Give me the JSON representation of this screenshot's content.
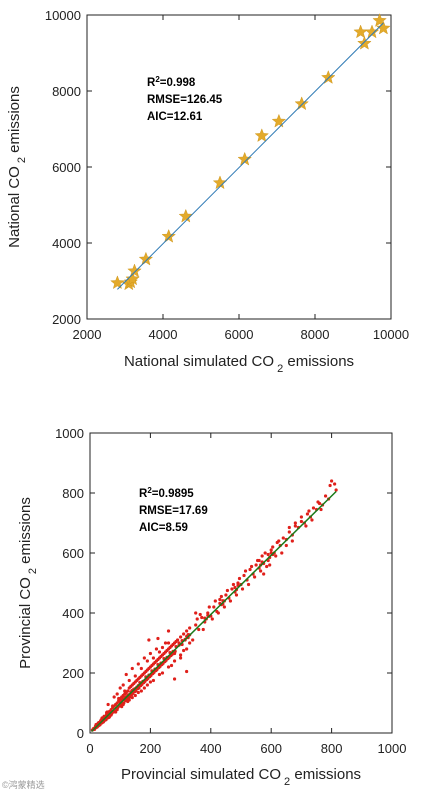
{
  "watermark": "©鸿蒙精选",
  "chart_data": [
    {
      "type": "scatter",
      "marker": "star",
      "xlabel": "National simulated CO 2 emissions",
      "ylabel": "National CO 2 emissions",
      "xlim": [
        2000,
        10000
      ],
      "ylim": [
        2000,
        10000
      ],
      "xticks": [
        2000,
        4000,
        6000,
        8000,
        10000
      ],
      "yticks": [
        2000,
        4000,
        6000,
        8000,
        10000
      ],
      "stats": [
        "R2=0.998",
        "RMSE=126.45",
        "AIC=12.61"
      ],
      "colors": {
        "points": "#e3aa2b",
        "fit_line": "#2e7ab5",
        "axes": "#222222"
      },
      "fit_line": {
        "x": [
          2800,
          9800
        ],
        "y": [
          2780,
          9790
        ]
      },
      "points": [
        [
          2800,
          2950
        ],
        [
          3100,
          2920
        ],
        [
          3150,
          2970
        ],
        [
          3200,
          3050
        ],
        [
          3250,
          3260
        ],
        [
          3550,
          3570
        ],
        [
          4150,
          4170
        ],
        [
          4600,
          4700
        ],
        [
          5500,
          5580
        ],
        [
          6150,
          6200
        ],
        [
          6600,
          6820
        ],
        [
          7050,
          7200
        ],
        [
          7650,
          7660
        ],
        [
          8350,
          8350
        ],
        [
          9200,
          9550
        ],
        [
          9300,
          9250
        ],
        [
          9500,
          9550
        ],
        [
          9700,
          9850
        ],
        [
          9800,
          9650
        ]
      ]
    },
    {
      "type": "scatter",
      "marker": "dot",
      "xlabel": "Provincial simulated CO 2 emissions",
      "ylabel": "Provincial CO 2 emissions",
      "xlim": [
        0,
        1000
      ],
      "ylim": [
        0,
        1000
      ],
      "xticks": [
        0,
        200,
        400,
        600,
        800,
        1000
      ],
      "yticks": [
        0,
        200,
        400,
        600,
        800,
        1000
      ],
      "stats": [
        "R2=0.9895",
        "RMSE=17.69",
        "AIC=8.59"
      ],
      "colors": {
        "points": "#e0201b",
        "fit_line": "#1a7a1a",
        "axes": "#222222"
      },
      "fit_line": {
        "x": [
          5,
          815
        ],
        "y": [
          5,
          805
        ]
      },
      "points": [
        [
          8,
          10
        ],
        [
          12,
          15
        ],
        [
          15,
          12
        ],
        [
          18,
          22
        ],
        [
          20,
          18
        ],
        [
          22,
          25
        ],
        [
          25,
          30
        ],
        [
          28,
          24
        ],
        [
          30,
          35
        ],
        [
          32,
          28
        ],
        [
          35,
          40
        ],
        [
          38,
          33
        ],
        [
          40,
          45
        ],
        [
          42,
          38
        ],
        [
          45,
          52
        ],
        [
          48,
          42
        ],
        [
          50,
          55
        ],
        [
          52,
          48
        ],
        [
          55,
          62
        ],
        [
          58,
          50
        ],
        [
          60,
          68
        ],
        [
          62,
          55
        ],
        [
          65,
          72
        ],
        [
          68,
          60
        ],
        [
          70,
          78
        ],
        [
          72,
          65
        ],
        [
          75,
          85
        ],
        [
          78,
          70
        ],
        [
          80,
          90
        ],
        [
          82,
          72
        ],
        [
          85,
          95
        ],
        [
          88,
          80
        ],
        [
          90,
          100
        ],
        [
          92,
          85
        ],
        [
          95,
          108
        ],
        [
          98,
          90
        ],
        [
          100,
          115
        ],
        [
          102,
          95
        ],
        [
          105,
          120
        ],
        [
          108,
          98
        ],
        [
          110,
          125
        ],
        [
          112,
          100
        ],
        [
          115,
          130
        ],
        [
          118,
          108
        ],
        [
          120,
          135
        ],
        [
          122,
          112
        ],
        [
          125,
          140
        ],
        [
          128,
          118
        ],
        [
          130,
          150
        ],
        [
          132,
          120
        ],
        [
          135,
          155
        ],
        [
          138,
          128
        ],
        [
          140,
          160
        ],
        [
          142,
          132
        ],
        [
          145,
          165
        ],
        [
          148,
          138
        ],
        [
          150,
          170
        ],
        [
          152,
          140
        ],
        [
          155,
          175
        ],
        [
          158,
          148
        ],
        [
          160,
          180
        ],
        [
          162,
          150
        ],
        [
          165,
          185
        ],
        [
          168,
          158
        ],
        [
          170,
          190
        ],
        [
          172,
          162
        ],
        [
          175,
          195
        ],
        [
          178,
          168
        ],
        [
          180,
          200
        ],
        [
          182,
          172
        ],
        [
          185,
          205
        ],
        [
          188,
          178
        ],
        [
          190,
          210
        ],
        [
          192,
          182
        ],
        [
          195,
          215
        ],
        [
          198,
          188
        ],
        [
          200,
          220
        ],
        [
          202,
          192
        ],
        [
          205,
          225
        ],
        [
          208,
          198
        ],
        [
          210,
          230
        ],
        [
          212,
          202
        ],
        [
          215,
          235
        ],
        [
          218,
          208
        ],
        [
          220,
          240
        ],
        [
          222,
          212
        ],
        [
          225,
          245
        ],
        [
          228,
          218
        ],
        [
          230,
          250
        ],
        [
          232,
          222
        ],
        [
          235,
          255
        ],
        [
          238,
          228
        ],
        [
          240,
          260
        ],
        [
          242,
          232
        ],
        [
          245,
          265
        ],
        [
          248,
          238
        ],
        [
          250,
          270
        ],
        [
          252,
          242
        ],
        [
          255,
          275
        ],
        [
          258,
          248
        ],
        [
          260,
          280
        ],
        [
          262,
          252
        ],
        [
          265,
          285
        ],
        [
          268,
          258
        ],
        [
          270,
          290
        ],
        [
          272,
          262
        ],
        [
          275,
          295
        ],
        [
          278,
          268
        ],
        [
          280,
          300
        ],
        [
          282,
          272
        ],
        [
          285,
          305
        ],
        [
          290,
          310
        ],
        [
          295,
          300
        ],
        [
          300,
          320
        ],
        [
          305,
          295
        ],
        [
          310,
          330
        ],
        [
          315,
          310
        ],
        [
          320,
          340
        ],
        [
          325,
          318
        ],
        [
          330,
          350
        ],
        [
          120,
          195
        ],
        [
          140,
          215
        ],
        [
          160,
          230
        ],
        [
          180,
          250
        ],
        [
          200,
          265
        ],
        [
          130,
          175
        ],
        [
          170,
          215
        ],
        [
          210,
          250
        ],
        [
          230,
          270
        ],
        [
          250,
          300
        ],
        [
          60,
          95
        ],
        [
          80,
          120
        ],
        [
          100,
          150
        ],
        [
          90,
          130
        ],
        [
          110,
          160
        ],
        [
          150,
          190
        ],
        [
          190,
          240
        ],
        [
          220,
          280
        ],
        [
          240,
          285
        ],
        [
          260,
          300
        ],
        [
          130,
          110
        ],
        [
          150,
          125
        ],
        [
          170,
          140
        ],
        [
          190,
          160
        ],
        [
          210,
          175
        ],
        [
          240,
          200
        ],
        [
          270,
          225
        ],
        [
          300,
          260
        ],
        [
          320,
          280
        ],
        [
          200,
          170
        ],
        [
          230,
          195
        ],
        [
          260,
          220
        ],
        [
          280,
          240
        ],
        [
          310,
          275
        ],
        [
          180,
          150
        ],
        [
          160,
          135
        ],
        [
          140,
          118
        ],
        [
          110,
          95
        ],
        [
          90,
          78
        ],
        [
          70,
          60
        ],
        [
          350,
          360
        ],
        [
          360,
          345
        ],
        [
          370,
          385
        ],
        [
          380,
          370
        ],
        [
          390,
          400
        ],
        [
          400,
          390
        ],
        [
          410,
          420
        ],
        [
          420,
          405
        ],
        [
          430,
          445
        ],
        [
          440,
          430
        ],
        [
          450,
          460
        ],
        [
          460,
          450
        ],
        [
          470,
          480
        ],
        [
          480,
          470
        ],
        [
          490,
          500
        ],
        [
          500,
          495
        ],
        [
          510,
          525
        ],
        [
          520,
          510
        ],
        [
          530,
          545
        ],
        [
          540,
          530
        ],
        [
          550,
          560
        ],
        [
          560,
          550
        ],
        [
          570,
          590
        ],
        [
          575,
          565
        ],
        [
          580,
          600
        ],
        [
          590,
          575
        ],
        [
          600,
          610
        ],
        [
          610,
          600
        ],
        [
          620,
          635
        ],
        [
          630,
          625
        ],
        [
          640,
          650
        ],
        [
          650,
          645
        ],
        [
          660,
          670
        ],
        [
          670,
          660
        ],
        [
          680,
          690
        ],
        [
          690,
          685
        ],
        [
          700,
          705
        ],
        [
          710,
          700
        ],
        [
          720,
          730
        ],
        [
          730,
          720
        ],
        [
          740,
          750
        ],
        [
          750,
          745
        ],
        [
          760,
          765
        ],
        [
          770,
          760
        ],
        [
          780,
          790
        ],
        [
          790,
          780
        ],
        [
          800,
          840
        ],
        [
          810,
          830
        ],
        [
          815,
          810
        ],
        [
          795,
          825
        ],
        [
          330,
          300
        ],
        [
          340,
          310
        ],
        [
          355,
          380
        ],
        [
          365,
          395
        ],
        [
          375,
          345
        ],
        [
          395,
          420
        ],
        [
          405,
          380
        ],
        [
          415,
          440
        ],
        [
          425,
          400
        ],
        [
          435,
          455
        ],
        [
          445,
          420
        ],
        [
          455,
          475
        ],
        [
          465,
          440
        ],
        [
          475,
          495
        ],
        [
          485,
          460
        ],
        [
          495,
          515
        ],
        [
          505,
          480
        ],
        [
          515,
          540
        ],
        [
          525,
          495
        ],
        [
          535,
          555
        ],
        [
          545,
          520
        ],
        [
          555,
          575
        ],
        [
          565,
          540
        ],
        [
          575,
          530
        ],
        [
          585,
          555
        ],
        [
          595,
          560
        ],
        [
          605,
          620
        ],
        [
          615,
          590
        ],
        [
          625,
          640
        ],
        [
          635,
          600
        ],
        [
          650,
          625
        ],
        [
          660,
          685
        ],
        [
          670,
          640
        ],
        [
          680,
          700
        ],
        [
          700,
          720
        ],
        [
          715,
          690
        ],
        [
          725,
          740
        ],
        [
          735,
          710
        ],
        [
          755,
          770
        ],
        [
          765,
          745
        ],
        [
          195,
          310
        ],
        [
          320,
          205
        ],
        [
          280,
          180
        ],
        [
          260,
          340
        ],
        [
          225,
          315
        ],
        [
          350,
          400
        ],
        [
          300,
          250
        ],
        [
          280,
          265
        ],
        [
          220,
          210
        ],
        [
          170,
          165
        ],
        [
          120,
          120
        ],
        [
          130,
          128
        ],
        [
          140,
          142
        ],
        [
          150,
          148
        ],
        [
          160,
          158
        ],
        [
          100,
          102
        ],
        [
          105,
          108
        ],
        [
          110,
          112
        ],
        [
          115,
          117
        ],
        [
          125,
          126
        ],
        [
          135,
          137
        ],
        [
          145,
          146
        ],
        [
          155,
          153
        ],
        [
          165,
          168
        ],
        [
          175,
          172
        ],
        [
          185,
          187
        ],
        [
          195,
          193
        ],
        [
          205,
          207
        ],
        [
          215,
          213
        ],
        [
          225,
          228
        ],
        [
          235,
          233
        ],
        [
          245,
          248
        ],
        [
          255,
          252
        ],
        [
          265,
          268
        ],
        [
          275,
          272
        ],
        [
          285,
          288
        ],
        [
          295,
          293
        ],
        [
          305,
          308
        ],
        [
          315,
          312
        ],
        [
          325,
          328
        ],
        [
          40,
          50
        ],
        [
          45,
          38
        ],
        [
          55,
          68
        ],
        [
          65,
          55
        ],
        [
          75,
          90
        ],
        [
          85,
          70
        ],
        [
          95,
          115
        ],
        [
          105,
          88
        ],
        [
          115,
          140
        ],
        [
          125,
          105
        ],
        [
          20,
          28
        ],
        [
          24,
          20
        ],
        [
          28,
          34
        ],
        [
          33,
          27
        ],
        [
          37,
          44
        ],
        [
          43,
          36
        ],
        [
          47,
          56
        ],
        [
          53,
          44
        ],
        [
          57,
          70
        ],
        [
          63,
          52
        ],
        [
          590,
          595
        ],
        [
          595,
          585
        ],
        [
          600,
          600
        ],
        [
          605,
          595
        ],
        [
          560,
          575
        ],
        [
          565,
          560
        ],
        [
          570,
          570
        ],
        [
          480,
          485
        ],
        [
          485,
          478
        ],
        [
          490,
          492
        ],
        [
          430,
          432
        ],
        [
          435,
          428
        ],
        [
          440,
          441
        ],
        [
          445,
          440
        ],
        [
          380,
          383
        ],
        [
          385,
          380
        ],
        [
          390,
          392
        ],
        [
          395,
          389
        ],
        [
          320,
          322
        ],
        [
          330,
          327
        ]
      ]
    }
  ]
}
